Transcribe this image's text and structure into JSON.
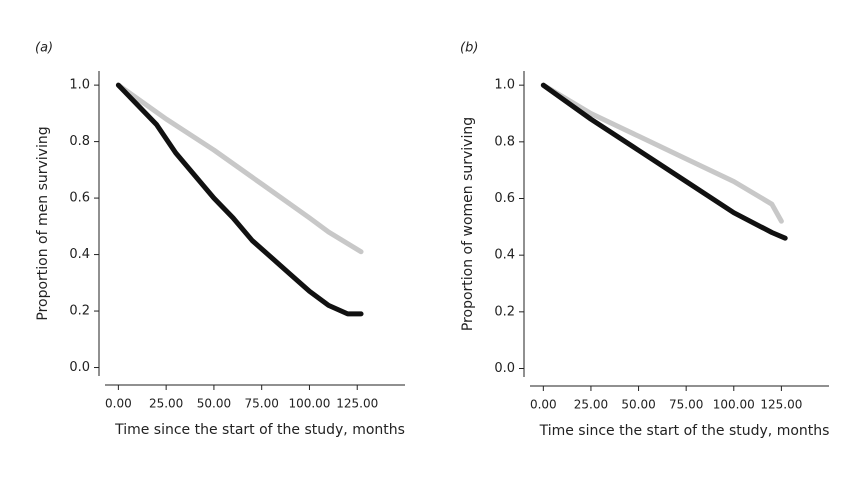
{
  "chart_data": [
    {
      "type": "line",
      "panel_label": "(a)",
      "ylabel": "Proportion of men surviving",
      "xlabel": "Time since the start of the study, months",
      "xlim": [
        -7,
        150
      ],
      "ylim": [
        -0.03,
        1.05
      ],
      "xticks": [
        {
          "value": 0,
          "label": "0.00"
        },
        {
          "value": 25,
          "label": "25.00"
        },
        {
          "value": 50,
          "label": "50.00"
        },
        {
          "value": 75,
          "label": "75.00"
        },
        {
          "value": 100,
          "label": "100.00"
        },
        {
          "value": 125,
          "label": "125.00"
        }
      ],
      "yticks": [
        {
          "value": 0,
          "label": "0.0"
        },
        0.2,
        0.4,
        0.6,
        0.8,
        {
          "value": 1,
          "label": "1.0"
        }
      ],
      "series": [
        {
          "color": "#c8c8c8",
          "x": [
            0,
            25,
            50,
            75,
            100,
            110,
            127
          ],
          "values": [
            1.0,
            0.88,
            0.77,
            0.65,
            0.53,
            0.48,
            0.41
          ]
        },
        {
          "color": "#111111",
          "x": [
            0,
            10,
            20,
            30,
            40,
            50,
            60,
            70,
            80,
            90,
            100,
            110,
            120,
            127
          ],
          "values": [
            1.0,
            0.93,
            0.86,
            0.76,
            0.68,
            0.6,
            0.53,
            0.45,
            0.39,
            0.33,
            0.27,
            0.22,
            0.19,
            0.19
          ]
        }
      ]
    },
    {
      "type": "line",
      "panel_label": "(b)",
      "ylabel": "Proportion of women surviving",
      "xlabel": "Time since the start of the study, months",
      "xlim": [
        -7,
        150
      ],
      "ylim": [
        -0.03,
        1.05
      ],
      "xticks": [
        {
          "value": 0,
          "label": "0.00"
        },
        {
          "value": 25,
          "label": "25.00"
        },
        {
          "value": 50,
          "label": "50.00"
        },
        {
          "value": 75,
          "label": "75.00"
        },
        {
          "value": 100,
          "label": "100.00"
        },
        {
          "value": 125,
          "label": "125.00"
        }
      ],
      "yticks": [
        {
          "value": 0,
          "label": "0.0"
        },
        0.2,
        0.4,
        0.6,
        0.8,
        {
          "value": 1,
          "label": "1.0"
        }
      ],
      "series": [
        {
          "color": "#c8c8c8",
          "x": [
            0,
            25,
            50,
            75,
            100,
            120,
            125
          ],
          "values": [
            1.0,
            0.9,
            0.82,
            0.74,
            0.66,
            0.58,
            0.52
          ]
        },
        {
          "color": "#111111",
          "x": [
            0,
            25,
            50,
            75,
            100,
            120,
            127
          ],
          "values": [
            1.0,
            0.88,
            0.77,
            0.66,
            0.55,
            0.48,
            0.46
          ]
        }
      ]
    }
  ]
}
